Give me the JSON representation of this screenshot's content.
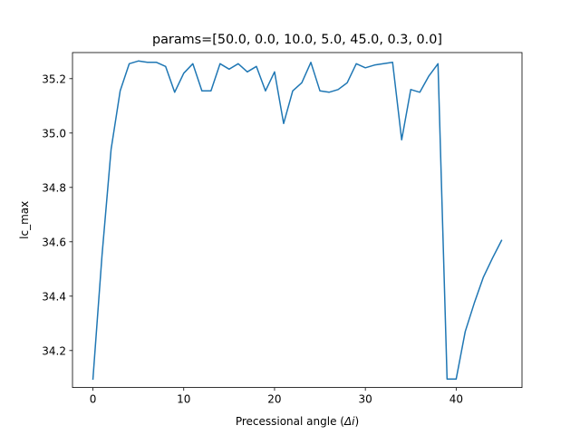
{
  "chart_data": {
    "type": "line",
    "title": "params=[50.0, 0.0, 10.0, 5.0, 45.0, 0.3, 0.0]",
    "xlabel_prefix": "Precessional angle (",
    "xlabel_symbol": "Δi",
    "xlabel_suffix": ")",
    "ylabel": "lc_max",
    "xlim": [
      -2.25,
      47.25
    ],
    "ylim": [
      34.064,
      35.296
    ],
    "xticks": [
      0,
      10,
      20,
      30,
      40
    ],
    "yticks": [
      34.2,
      34.4,
      34.6,
      34.8,
      35.0,
      35.2
    ],
    "ytick_labels": [
      "34.2",
      "34.4",
      "34.6",
      "34.8",
      "35.0",
      "35.2"
    ],
    "grid": false,
    "series": [
      {
        "color": "#1f77b4",
        "x": [
          0,
          1,
          2,
          3,
          4,
          5,
          6,
          7,
          8,
          9,
          10,
          11,
          12,
          13,
          14,
          15,
          16,
          17,
          18,
          19,
          20,
          21,
          22,
          23,
          24,
          25,
          26,
          27,
          28,
          29,
          30,
          31,
          32,
          33,
          34,
          35,
          36,
          37,
          38,
          39,
          40,
          41,
          42,
          43,
          44,
          45
        ],
        "y": [
          34.095,
          34.55,
          34.94,
          35.155,
          35.255,
          35.265,
          35.26,
          35.26,
          35.245,
          35.15,
          35.22,
          35.255,
          35.155,
          35.155,
          35.255,
          35.235,
          35.255,
          35.225,
          35.245,
          35.155,
          35.225,
          35.035,
          35.155,
          35.185,
          35.26,
          35.155,
          35.15,
          35.16,
          35.185,
          35.255,
          35.24,
          35.25,
          35.255,
          35.26,
          34.975,
          35.16,
          35.15,
          35.21,
          35.255,
          34.095,
          34.095,
          34.27,
          34.375,
          34.47,
          34.54,
          34.605
        ]
      }
    ]
  }
}
